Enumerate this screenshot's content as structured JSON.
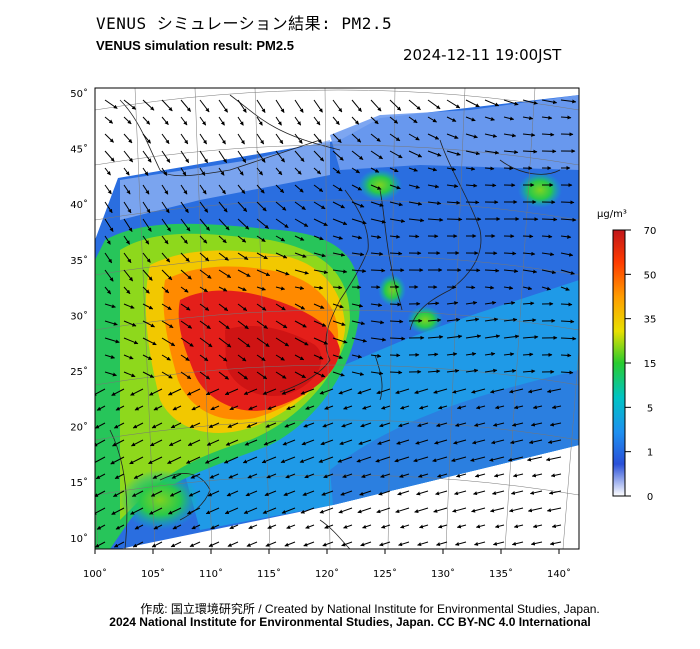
{
  "header": {
    "title_jp": "VENUS シミュレーション結果: PM2.5",
    "title_en": "VENUS simulation result: PM2.5",
    "timestamp": "2024-12-11 19:00JST"
  },
  "map": {
    "lon_ticks": [
      "100˚",
      "105˚",
      "110˚",
      "115˚",
      "120˚",
      "125˚",
      "130˚",
      "135˚",
      "140˚"
    ],
    "lat_ticks": [
      "50˚",
      "45˚",
      "40˚",
      "35˚",
      "30˚",
      "25˚",
      "20˚",
      "15˚",
      "10˚"
    ],
    "lon_values": [
      100,
      105,
      110,
      115,
      120,
      125,
      130,
      135,
      140
    ],
    "lat_values": [
      50,
      45,
      40,
      35,
      30,
      25,
      20,
      15,
      10
    ]
  },
  "legend": {
    "unit": "µg/m³",
    "ticks": [
      "70",
      "50",
      "35",
      "15",
      "5",
      "1",
      "0"
    ],
    "colors": [
      "#cc1f1f",
      "#ff5a00",
      "#ff9c00",
      "#e6e600",
      "#2fd42f",
      "#00c8c8",
      "#2196f3",
      "#1c55d6",
      "#ffffff"
    ]
  },
  "footer": {
    "credit_line1": "作成: 国立環境研究所 / Created by National Institute for Environmental Studies, Japan.",
    "credit_line2": "2024 National Institute for Environmental Studies, Japan. CC BY-NC 4.0 International"
  }
}
